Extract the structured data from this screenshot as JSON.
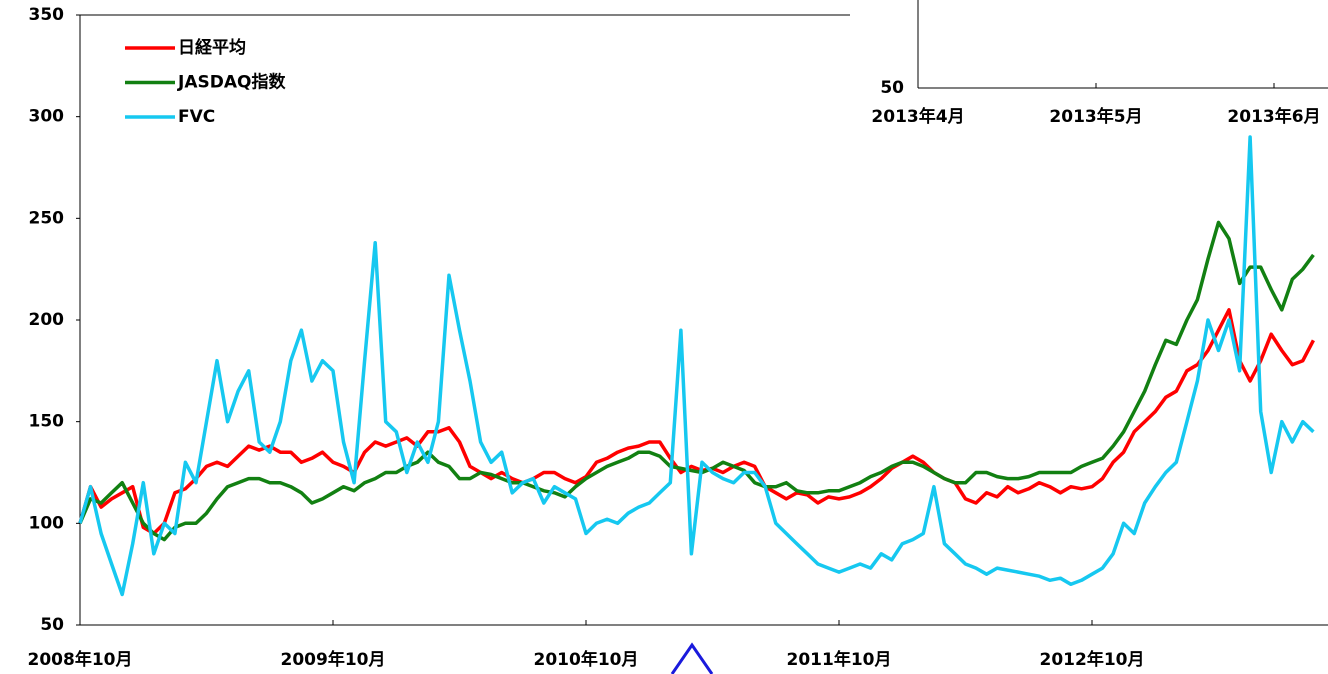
{
  "chart_data": [
    {
      "type": "line",
      "categories": [
        "2008年10月",
        null,
        null,
        null,
        null,
        null,
        null,
        null,
        null,
        null,
        null,
        null,
        null,
        null,
        null,
        null,
        null,
        null,
        null,
        null,
        null,
        null,
        null,
        null,
        "2009年10月",
        null,
        null,
        null,
        null,
        null,
        null,
        null,
        null,
        null,
        null,
        null,
        null,
        null,
        null,
        null,
        null,
        null,
        null,
        null,
        null,
        null,
        null,
        null,
        "2010年10月",
        null,
        null,
        null,
        null,
        null,
        null,
        null,
        null,
        null,
        null,
        null,
        null,
        null,
        null,
        null,
        null,
        null,
        null,
        null,
        null,
        null,
        null,
        null,
        "2011年10月",
        null,
        null,
        null,
        null,
        null,
        null,
        null,
        null,
        null,
        null,
        null,
        null,
        null,
        null,
        null,
        null,
        null,
        null,
        null,
        null,
        null,
        null,
        null,
        "2012年10月",
        null,
        null,
        null,
        null,
        null,
        null,
        null,
        null,
        null,
        null,
        null,
        null,
        null,
        null,
        null,
        null,
        null,
        null,
        null,
        null,
        null
      ],
      "ylim": [
        50,
        350
      ],
      "yticks": [
        50,
        100,
        150,
        200,
        250,
        300,
        350
      ],
      "legend": "upper left",
      "series": [
        {
          "name": "日経平均",
          "color": "#ff0000",
          "values": [
            100,
            118,
            108,
            112,
            115,
            118,
            98,
            95,
            100,
            115,
            117,
            122,
            128,
            130,
            128,
            133,
            138,
            136,
            138,
            135,
            135,
            130,
            132,
            135,
            130,
            128,
            125,
            135,
            140,
            138,
            140,
            142,
            138,
            145,
            145,
            147,
            140,
            128,
            125,
            122,
            125,
            122,
            120,
            122,
            125,
            125,
            122,
            120,
            123,
            130,
            132,
            135,
            137,
            138,
            140,
            140,
            132,
            125,
            128,
            126,
            127,
            125,
            128,
            130,
            128,
            118,
            115,
            112,
            115,
            114,
            110,
            113,
            112,
            113,
            115,
            118,
            122,
            127,
            130,
            133,
            130,
            125,
            122,
            120,
            112,
            110,
            115,
            113,
            118,
            115,
            117,
            120,
            118,
            115,
            118,
            117,
            118,
            122,
            130,
            135,
            145,
            150,
            155,
            162,
            165,
            175,
            178,
            185,
            195,
            205,
            180,
            170,
            180,
            193,
            185,
            178,
            180,
            190
          ]
        },
        {
          "name": "JASDAQ指数",
          "color": "#128012",
          "values": [
            100,
            112,
            110,
            115,
            120,
            110,
            100,
            95,
            92,
            98,
            100,
            100,
            105,
            112,
            118,
            120,
            122,
            122,
            120,
            120,
            118,
            115,
            110,
            112,
            115,
            118,
            116,
            120,
            122,
            125,
            125,
            128,
            130,
            135,
            130,
            128,
            122,
            122,
            125,
            124,
            122,
            120,
            120,
            118,
            116,
            115,
            113,
            118,
            122,
            125,
            128,
            130,
            132,
            135,
            135,
            133,
            128,
            127,
            126,
            125,
            127,
            130,
            128,
            126,
            120,
            118,
            118,
            120,
            116,
            115,
            115,
            116,
            116,
            118,
            120,
            123,
            125,
            128,
            130,
            130,
            128,
            125,
            122,
            120,
            120,
            125,
            125,
            123,
            122,
            122,
            123,
            125,
            125,
            125,
            125,
            128,
            130,
            132,
            138,
            145,
            155,
            165,
            178,
            190,
            188,
            200,
            210,
            230,
            248,
            240,
            218,
            226,
            226,
            215,
            205,
            220,
            225,
            232
          ]
        },
        {
          "name": "FVC",
          "color": "#16c8f0",
          "values": [
            100,
            118,
            95,
            80,
            65,
            90,
            120,
            85,
            100,
            95,
            130,
            120,
            150,
            180,
            150,
            165,
            175,
            140,
            135,
            150,
            180,
            195,
            170,
            180,
            175,
            140,
            120,
            180,
            238,
            150,
            145,
            125,
            140,
            130,
            150,
            222,
            195,
            170,
            140,
            130,
            135,
            115,
            120,
            122,
            110,
            118,
            115,
            112,
            95,
            100,
            102,
            100,
            105,
            108,
            110,
            115,
            120,
            195,
            85,
            130,
            125,
            122,
            120,
            125,
            125,
            118,
            100,
            95,
            90,
            85,
            80,
            78,
            76,
            78,
            80,
            78,
            85,
            82,
            90,
            92,
            95,
            118,
            90,
            85,
            80,
            78,
            75,
            78,
            77,
            76,
            75,
            74,
            72,
            73,
            70,
            72,
            75,
            78,
            85,
            100,
            95,
            110,
            118,
            125,
            130,
            150,
            170,
            200,
            185,
            200,
            175,
            290,
            155,
            125,
            150,
            140,
            150,
            145
          ]
        }
      ]
    },
    {
      "type": "line",
      "categories": [
        "2013年4月",
        "2013年5月",
        "2013年6月"
      ],
      "yticks": [
        50
      ]
    }
  ]
}
